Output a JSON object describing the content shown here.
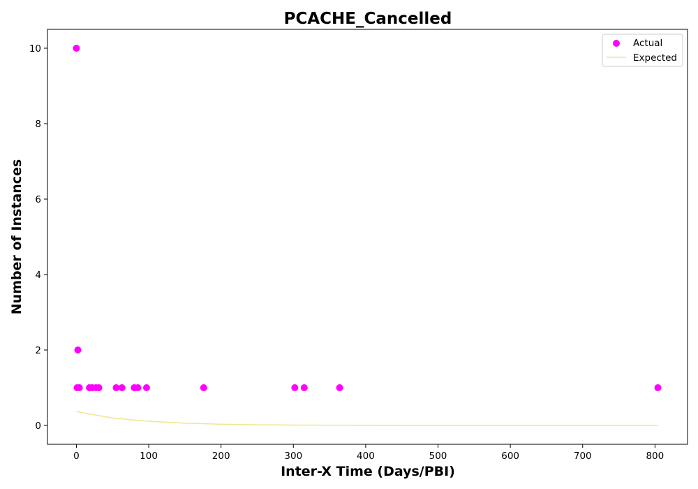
{
  "chart_data": {
    "type": "scatter",
    "title": "PCACHE_Cancelled",
    "xlabel": "Inter-X Time (Days/PBI)",
    "ylabel": "Number of Instances",
    "xlim": [
      -40,
      845
    ],
    "ylim": [
      -0.5,
      10.5
    ],
    "xticks": [
      0,
      100,
      200,
      300,
      400,
      500,
      600,
      700,
      800
    ],
    "yticks": [
      0,
      2,
      4,
      6,
      8,
      10
    ],
    "grid": false,
    "legend_position": "top-right",
    "colors": {
      "actual": "#ff00ff",
      "expected": "#f0e68c"
    },
    "series": [
      {
        "name": "Actual",
        "kind": "scatter",
        "x": [
          0,
          2,
          1,
          4,
          18,
          22,
          27,
          31,
          55,
          63,
          80,
          85,
          97,
          176,
          302,
          315,
          364,
          804
        ],
        "y": [
          10,
          2,
          1,
          1,
          1,
          1,
          1,
          1,
          1,
          1,
          1,
          1,
          1,
          1,
          1,
          1,
          1,
          1
        ]
      },
      {
        "name": "Expected",
        "kind": "line",
        "x": [
          0,
          25,
          50,
          75,
          100,
          150,
          200,
          250,
          300,
          400,
          500,
          600,
          700,
          804
        ],
        "y": [
          0.37,
          0.28,
          0.2,
          0.15,
          0.11,
          0.06,
          0.032,
          0.017,
          0.009,
          0.003,
          0.001,
          0.0004,
          0.0001,
          0.0
        ]
      }
    ]
  }
}
